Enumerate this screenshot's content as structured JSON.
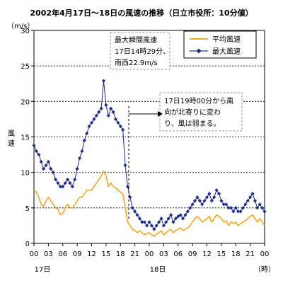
{
  "chart_data": {
    "type": "line",
    "title": "2002年4月17日～18日の風速の推移（日立市役所：10分値）",
    "unit_label": "（m/s）",
    "ylabel": "風速",
    "ylim": [
      0,
      30
    ],
    "y_ticks": [
      0,
      5,
      10,
      15,
      20,
      25,
      30
    ],
    "grid_y": true,
    "legend_position": "top-right",
    "x_hours": [
      0,
      3,
      6,
      9,
      12,
      15,
      18,
      21,
      24,
      27,
      30,
      33,
      36,
      39,
      42,
      45,
      48
    ],
    "x_tick_labels": [
      "00",
      "03",
      "06",
      "09",
      "12",
      "15",
      "18",
      "21",
      "00",
      "03",
      "06",
      "09",
      "12",
      "15",
      "18",
      "21",
      "00"
    ],
    "day_labels": [
      {
        "text": "17日",
        "hour": 0
      },
      {
        "text": "18日",
        "hour": 24
      }
    ],
    "x_unit": "（時）",
    "x_range_hours": [
      0,
      48
    ],
    "series": [
      {
        "name": "平均風速",
        "color": "#f5a623",
        "marker": "none",
        "x_hours": [
          0,
          0.5,
          1,
          1.5,
          2,
          2.5,
          3,
          3.5,
          4,
          4.5,
          5,
          5.5,
          6,
          6.5,
          7,
          7.5,
          8,
          8.5,
          9,
          9.5,
          10,
          10.5,
          11,
          11.5,
          12,
          12.5,
          13,
          13.5,
          14,
          14.5,
          15,
          15.5,
          16,
          16.5,
          17,
          17.5,
          18,
          18.5,
          19,
          19.5,
          20,
          20.5,
          21,
          21.5,
          22,
          22.5,
          23,
          23.5,
          24,
          24.5,
          25,
          25.5,
          26,
          26.5,
          27,
          27.5,
          28,
          28.5,
          29,
          29.5,
          30,
          30.5,
          31,
          31.5,
          32,
          32.5,
          33,
          33.5,
          34,
          34.5,
          35,
          35.5,
          36,
          36.5,
          37,
          37.5,
          38,
          38.5,
          39,
          39.5,
          40,
          40.5,
          41,
          41.5,
          42,
          42.5,
          43,
          43.5,
          44,
          44.5,
          45,
          45.5,
          46,
          46.5,
          47,
          47.5,
          48
        ],
        "values": [
          7.5,
          7.2,
          6.5,
          5.5,
          5.2,
          6.0,
          6.5,
          6.0,
          5.5,
          5.0,
          4.8,
          4.0,
          4.2,
          5.0,
          5.5,
          5.0,
          5.0,
          5.5,
          6.0,
          6.5,
          6.5,
          7.0,
          7.5,
          7.5,
          7.5,
          8.0,
          8.5,
          9.0,
          9.5,
          10.2,
          9.5,
          8.0,
          8.5,
          8.0,
          7.8,
          7.5,
          7.2,
          7.0,
          5.0,
          3.0,
          2.5,
          2.0,
          1.8,
          1.5,
          1.8,
          1.5,
          1.2,
          1.4,
          1.5,
          1.2,
          1.0,
          1.3,
          1.5,
          1.8,
          1.2,
          1.5,
          1.8,
          2.0,
          1.5,
          1.8,
          2.0,
          2.2,
          1.8,
          2.0,
          2.2,
          2.5,
          3.0,
          3.5,
          3.8,
          3.5,
          3.0,
          3.2,
          3.5,
          3.8,
          3.0,
          3.5,
          4.0,
          3.8,
          3.5,
          3.0,
          3.2,
          2.5,
          3.0,
          2.8,
          3.0,
          2.5,
          2.8,
          3.0,
          3.2,
          3.5,
          3.8,
          4.0,
          3.5,
          3.0,
          3.5,
          3.0,
          2.5
        ]
      },
      {
        "name": "最大風速",
        "color": "#1f2d8c",
        "marker": "diamond",
        "x_hours": [
          0,
          0.5,
          1,
          1.5,
          2,
          2.5,
          3,
          3.5,
          4,
          4.5,
          5,
          5.5,
          6,
          6.5,
          7,
          7.5,
          8,
          8.5,
          9,
          9.5,
          10,
          10.5,
          11,
          11.5,
          12,
          12.5,
          13,
          13.5,
          14,
          14.5,
          15,
          15.5,
          16,
          16.5,
          17,
          17.5,
          18,
          18.5,
          19,
          19.5,
          20,
          20.5,
          21,
          21.5,
          22,
          22.5,
          23,
          23.5,
          24,
          24.5,
          25,
          25.5,
          26,
          26.5,
          27,
          27.5,
          28,
          28.5,
          29,
          29.5,
          30,
          30.5,
          31,
          31.5,
          32,
          32.5,
          33,
          33.5,
          34,
          34.5,
          35,
          35.5,
          36,
          36.5,
          37,
          37.5,
          38,
          38.5,
          39,
          39.5,
          40,
          40.5,
          41,
          41.5,
          42,
          42.5,
          43,
          43.5,
          44,
          44.5,
          45,
          45.5,
          46,
          46.5,
          47,
          47.5,
          48
        ],
        "values": [
          13.8,
          13.0,
          12.5,
          11.5,
          10.5,
          11.0,
          11.5,
          10.5,
          10.0,
          9.0,
          8.5,
          8.0,
          8.0,
          8.5,
          9.0,
          8.5,
          8.0,
          9.0,
          10.5,
          12.0,
          13.0,
          14.5,
          15.5,
          16.5,
          17.0,
          17.5,
          18.0,
          18.5,
          19.0,
          22.9,
          19.5,
          18.0,
          19.0,
          18.5,
          17.5,
          17.0,
          16.5,
          16.0,
          11.0,
          8.0,
          6.5,
          5.0,
          4.5,
          4.0,
          3.5,
          3.0,
          3.0,
          2.5,
          3.0,
          2.5,
          2.0,
          2.5,
          3.0,
          3.5,
          2.5,
          3.0,
          3.5,
          4.0,
          3.0,
          3.5,
          3.8,
          4.0,
          3.5,
          4.0,
          4.5,
          5.0,
          5.5,
          6.0,
          6.5,
          6.0,
          5.5,
          6.0,
          6.5,
          7.0,
          6.0,
          6.5,
          7.5,
          7.0,
          6.0,
          5.5,
          5.5,
          5.0,
          5.0,
          4.5,
          5.0,
          4.5,
          4.5,
          5.0,
          5.5,
          6.0,
          6.5,
          7.0,
          6.0,
          5.0,
          5.5,
          5.0,
          4.5
        ]
      }
    ],
    "annotations": [
      {
        "id": "peak",
        "lines": [
          "最大瞬間風速",
          "17日14時29分、",
          "南西22.9m/s"
        ]
      },
      {
        "id": "shift",
        "lines": [
          "17日19時00分から風",
          "向が北寄りに変わ",
          "り、風は弱まる。"
        ]
      }
    ]
  }
}
